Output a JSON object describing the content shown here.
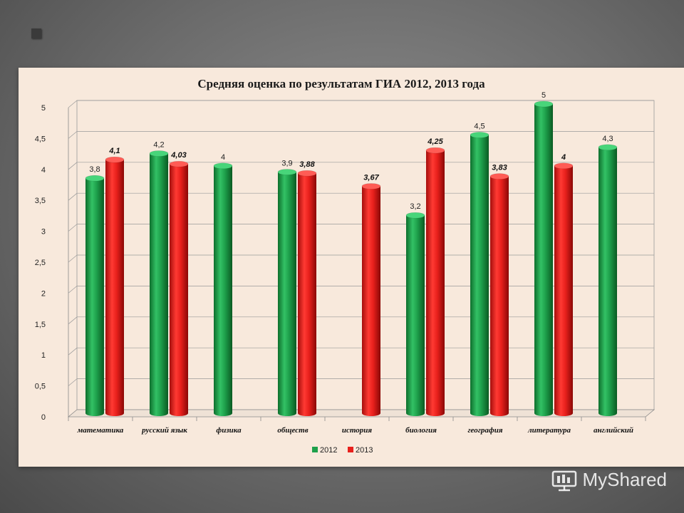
{
  "chart_data": {
    "type": "bar",
    "title": "Средняя оценка по результатам ГИА 2012, 2013 года",
    "categories": [
      "математика",
      "русский язык",
      "физика",
      "обществ",
      "история",
      "биология",
      "география",
      "литература",
      "английский"
    ],
    "series": [
      {
        "name": "2012",
        "color": "#1ea04b",
        "values": [
          3.8,
          4.2,
          4,
          3.9,
          null,
          3.2,
          4.5,
          5,
          4.3
        ],
        "labels": [
          "3,8",
          "4,2",
          "4",
          "3,9",
          "",
          "3,2",
          "4,5",
          "5",
          "4,3"
        ]
      },
      {
        "name": "2013",
        "color": "#e8201c",
        "values": [
          4.1,
          4.03,
          null,
          3.88,
          3.67,
          4.25,
          3.83,
          4,
          null
        ],
        "labels": [
          "4,1",
          "4,03",
          "",
          "3,88",
          "3,67",
          "4,25",
          "3,83",
          "4",
          ""
        ]
      }
    ],
    "ylim": [
      0,
      5
    ],
    "yticks": [
      0,
      0.5,
      1,
      1.5,
      2,
      2.5,
      3,
      3.5,
      4,
      4.5,
      5
    ],
    "ytick_labels": [
      "0",
      "0,5",
      "1",
      "1,5",
      "2",
      "2,5",
      "3",
      "3,5",
      "4",
      "4,5",
      "5"
    ],
    "grid": true,
    "legend": "bottom-center"
  },
  "watermark": {
    "text": "MyShared"
  }
}
